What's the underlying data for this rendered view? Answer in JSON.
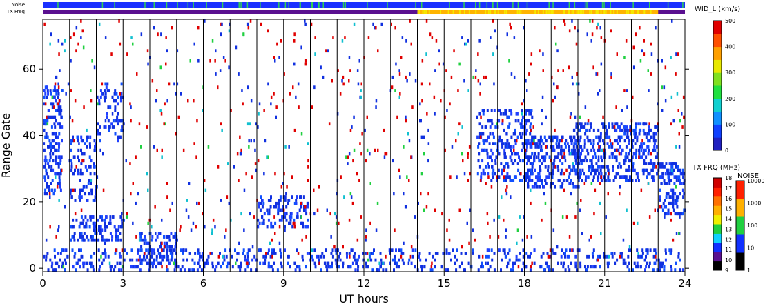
{
  "chart_data": {
    "type": "heatmap",
    "xlabel": "UT hours",
    "ylabel": "Range Gate",
    "xlim": [
      0,
      24
    ],
    "ylim": [
      -1,
      75
    ],
    "xticks": [
      "0",
      "3",
      "6",
      "9",
      "12",
      "15",
      "18",
      "21",
      "24"
    ],
    "yticks": [
      "0",
      "20",
      "40",
      "60"
    ],
    "hour_lines": [
      1,
      2,
      3,
      4,
      5,
      6,
      7,
      8,
      9,
      10,
      11,
      12,
      13,
      14,
      15,
      16,
      17,
      18,
      19,
      20,
      21,
      22,
      23
    ],
    "strips": {
      "noise_label": "Noise",
      "txfreq_label": "TX Freq",
      "txfreq_high_segment": {
        "start_hour": 14,
        "end_hour": 23,
        "color_a": "#ffb400",
        "color_b": "#f5e800"
      },
      "txfreq_base_color": "#5a1090",
      "noise_base_color": "#1a30ff",
      "noise_spike_color": "#30d050"
    },
    "echo_regions": [
      {
        "x0": 0.0,
        "x1": 0.7,
        "y0": 22,
        "y1": 55,
        "density": 0.55
      },
      {
        "x0": 1.0,
        "x1": 3.0,
        "y0": 8,
        "y1": 16,
        "density": 0.6
      },
      {
        "x0": 1.0,
        "x1": 2.0,
        "y0": 20,
        "y1": 40,
        "density": 0.35
      },
      {
        "x0": 2.0,
        "x1": 3.0,
        "y0": 38,
        "y1": 56,
        "density": 0.3
      },
      {
        "x0": 3.6,
        "x1": 5.0,
        "y0": 1,
        "y1": 11,
        "density": 0.6
      },
      {
        "x0": 8.0,
        "x1": 9.9,
        "y0": 12,
        "y1": 22,
        "density": 0.45
      },
      {
        "x0": 16.2,
        "x1": 18.3,
        "y0": 26,
        "y1": 48,
        "density": 0.45
      },
      {
        "x0": 18.0,
        "x1": 20.0,
        "y0": 24,
        "y1": 40,
        "density": 0.55
      },
      {
        "x0": 19.8,
        "x1": 23.0,
        "y0": 26,
        "y1": 44,
        "density": 0.55
      },
      {
        "x0": 23.0,
        "x1": 24.0,
        "y0": 16,
        "y1": 32,
        "density": 0.65
      },
      {
        "x0": 0.0,
        "x1": 24.0,
        "y0": -1,
        "y1": 6,
        "density": 0.3
      }
    ],
    "colorbars": [
      {
        "name": "velocity-width",
        "title": "WID_L (km/s)",
        "ticks": [
          "500",
          "400",
          "300",
          "200",
          "100",
          "0"
        ],
        "colors": [
          "#2020c0",
          "#1040ff",
          "#1090ff",
          "#10d0d0",
          "#20e040",
          "#80e020",
          "#e8e800",
          "#ffa000",
          "#ff5000",
          "#e00000"
        ]
      },
      {
        "name": "tx-frequency",
        "title": "TX FRQ (MHz)",
        "ticks": [
          "18",
          "17",
          "16",
          "15",
          "14",
          "13",
          "12",
          "11",
          "10",
          "9"
        ],
        "colors": [
          "#000000",
          "#5a1090",
          "#1030ff",
          "#10d0ff",
          "#20d040",
          "#f0f000",
          "#ffb000",
          "#ff7000",
          "#ff2000",
          "#d00000"
        ]
      },
      {
        "name": "noise",
        "title": "NOISE",
        "ticks": [
          "10000",
          "1000",
          "100",
          "10",
          "1"
        ],
        "colors": [
          "#000000",
          "#1030ff",
          "#20d040",
          "#ffb000",
          "#ff2000"
        ]
      }
    ]
  }
}
